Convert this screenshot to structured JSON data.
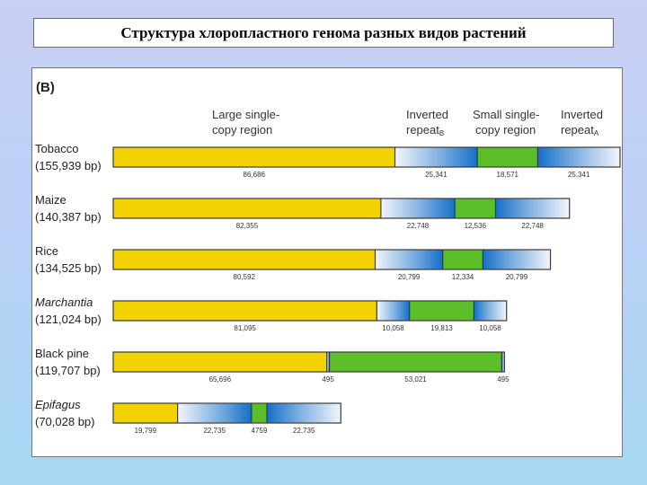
{
  "slide": {
    "title": "Структура хлоропластного генома разных видов растений"
  },
  "figure": {
    "panel_label": "(B)",
    "region_headers": {
      "lsc": [
        "Large single-",
        "copy region"
      ],
      "irb": [
        "Inverted",
        "repeat"
      ],
      "irb_sub": "B",
      "ssc": [
        "Small single-",
        "copy region"
      ],
      "ira": [
        "Inverted",
        "repeat"
      ],
      "ira_sub": "A"
    },
    "colors": {
      "lsc": "#f2d200",
      "ssc": "#5cbf2a",
      "ir_dark": "#1570c8",
      "ir_light": "#f2f6fb"
    },
    "species": [
      {
        "name": "Tobacco",
        "size": "(155,939 bp)",
        "italic": false,
        "segments": [
          {
            "type": "lsc",
            "length": 86686
          },
          {
            "type": "irb",
            "length": 25341
          },
          {
            "type": "ssc",
            "length": 18571
          },
          {
            "type": "ira",
            "length": 25341
          }
        ],
        "labels": [
          "86,686",
          "25,341",
          "18,571",
          "25,341"
        ]
      },
      {
        "name": "Maize",
        "size": "(140,387 bp)",
        "italic": false,
        "segments": [
          {
            "type": "lsc",
            "length": 82355
          },
          {
            "type": "irb",
            "length": 22748
          },
          {
            "type": "ssc",
            "length": 12536
          },
          {
            "type": "ira",
            "length": 22748
          }
        ],
        "labels": [
          "82,355",
          "22,748",
          "12,536",
          "22,748"
        ]
      },
      {
        "name": "Rice",
        "size": "(134,525 bp)",
        "italic": false,
        "segments": [
          {
            "type": "lsc",
            "length": 80592
          },
          {
            "type": "irb",
            "length": 20799
          },
          {
            "type": "ssc",
            "length": 12334
          },
          {
            "type": "ira",
            "length": 20799
          }
        ],
        "labels": [
          "80,592",
          "20,799",
          "12,334",
          "20,799"
        ]
      },
      {
        "name": "Marchantia",
        "size": "(121,024 bp)",
        "italic": true,
        "segments": [
          {
            "type": "lsc",
            "length": 81095
          },
          {
            "type": "irb",
            "length": 10058
          },
          {
            "type": "ssc",
            "length": 19813
          },
          {
            "type": "ira",
            "length": 10058
          }
        ],
        "labels": [
          "81,095",
          "10,058",
          "19,813",
          "10,058"
        ]
      },
      {
        "name": "Black pine",
        "size": "(119,707 bp)",
        "italic": false,
        "segments": [
          {
            "type": "lsc",
            "length": 65696
          },
          {
            "type": "irb",
            "length": 495
          },
          {
            "type": "ssc",
            "length": 53021
          },
          {
            "type": "ira",
            "length": 495
          }
        ],
        "labels": [
          "65,696",
          "495",
          "53,021",
          "495"
        ]
      },
      {
        "name": "Epifagus",
        "size": "(70,028 bp)",
        "italic": true,
        "segments": [
          {
            "type": "lsc",
            "length": 19799
          },
          {
            "type": "irb",
            "length": 22735
          },
          {
            "type": "ssc",
            "length": 4759
          },
          {
            "type": "ira",
            "length": 22735
          }
        ],
        "labels": [
          "19,799",
          "22,735",
          "4759",
          "22,735"
        ]
      }
    ]
  }
}
